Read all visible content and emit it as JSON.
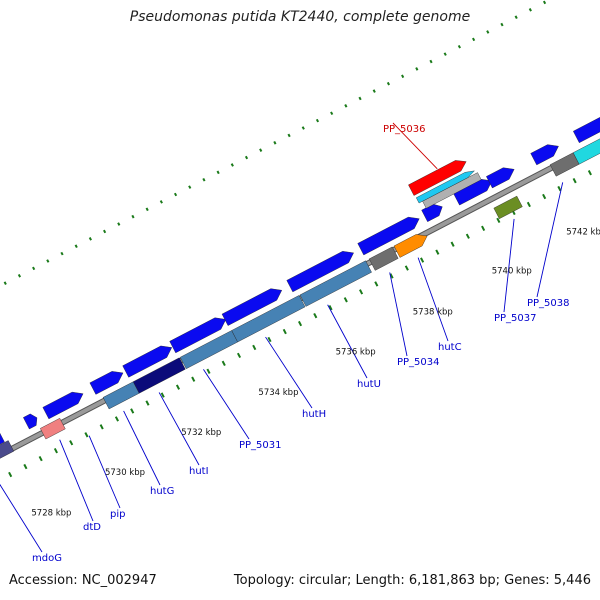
{
  "title": "Pseudomonas putida KT2440, complete genome",
  "accession": "Accession: NC_002947",
  "topology": "Topology: circular; Length: 6,181,863 bp; Genes: 5,446",
  "colors": {
    "backbone": "#9a9a9a",
    "gene_blue": "#0a0af0",
    "steel": "#4682b4",
    "navy": "#0b0b7a",
    "slate": "#4b4b8c",
    "pink": "#f08080",
    "grey": "#6e6e6e",
    "orange": "#ff8c00",
    "olive": "#6b8e23",
    "cyan": "#20d8e0",
    "red": "#ff0000",
    "label": "#0000cc",
    "highlight_label": "#cc0000",
    "tick": "#1a7a1a"
  },
  "scale_labels": [
    "5728 kbp",
    "5730 kbp",
    "5732 kbp",
    "5734 kbp",
    "5736 kbp",
    "5738 kbp",
    "5740 kbp",
    "5742 kbp"
  ],
  "gene_labels": [
    "mdoG",
    "dtD",
    "pip",
    "hutG",
    "hutI",
    "PP_5031",
    "hutH",
    "hutU",
    "PP_5034",
    "hutC",
    "PP_5037",
    "PP_5038",
    "PP_5036"
  ]
}
